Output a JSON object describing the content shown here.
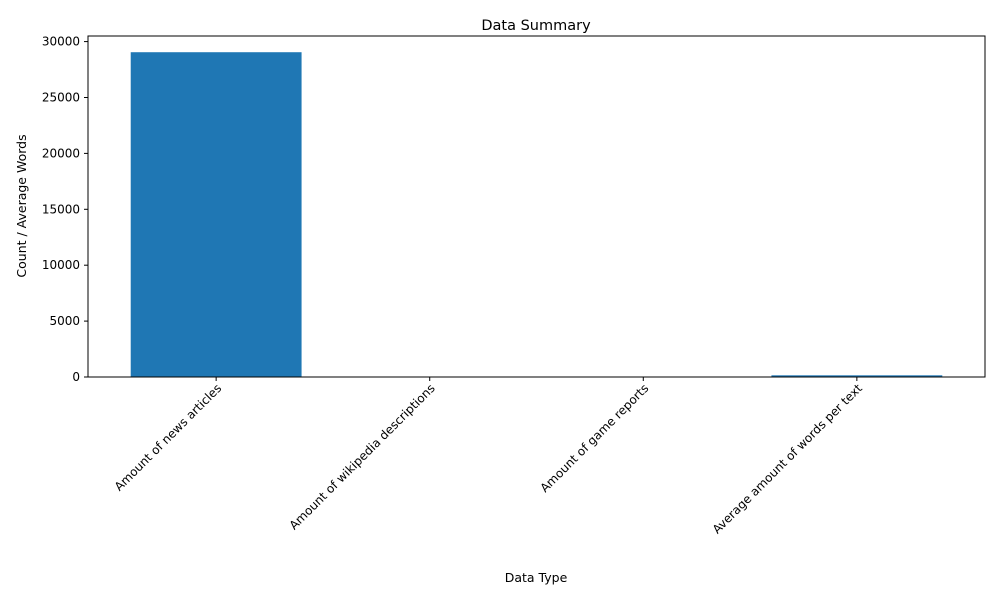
{
  "chart_data": {
    "type": "bar",
    "title": "Data Summary",
    "xlabel": "Data Type",
    "ylabel": "Count / Average Words",
    "categories": [
      "Amount of news articles",
      "Amount of wikipedia descriptions",
      "Amount of game reports",
      "Average amount of words per text"
    ],
    "values": [
      29050,
      5,
      3,
      150
    ],
    "ylim": [
      0,
      30500
    ],
    "yticks": [
      0,
      5000,
      10000,
      15000,
      20000,
      25000,
      30000
    ],
    "xtick_rotation_deg": 45,
    "grid": false,
    "legend": "none",
    "bar_color": "#1f77b4"
  }
}
